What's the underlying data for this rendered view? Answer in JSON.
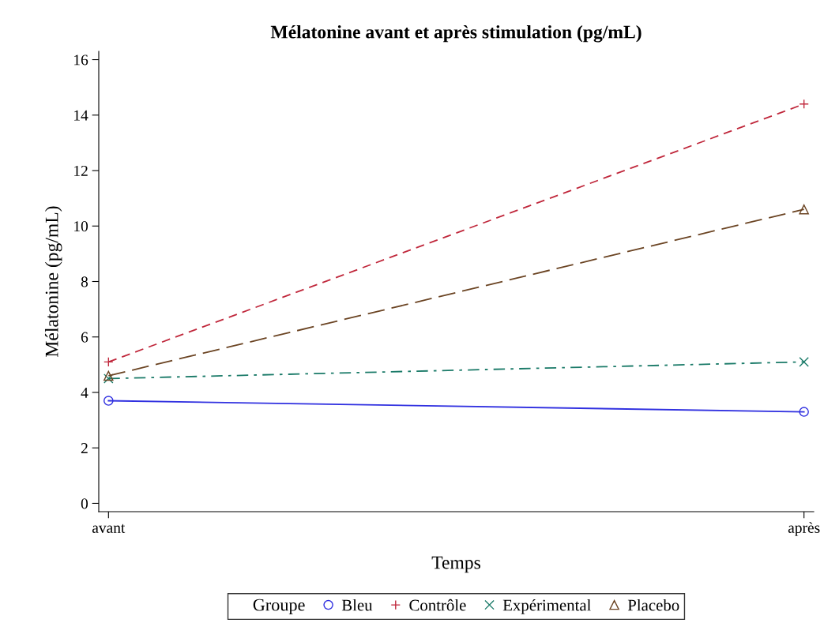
{
  "chart_data": {
    "type": "line",
    "title": "Mélatonine avant et après stimulation (pg/mL)",
    "xlabel": "Temps",
    "ylabel": "Mélatonine (pg/mL)",
    "legend_title": "Groupe",
    "categories": [
      "avant",
      "après"
    ],
    "series": [
      {
        "name": "Bleu",
        "color": "#3030e0",
        "values": [
          3.7,
          3.3
        ],
        "marker": "circle",
        "line_style": "solid"
      },
      {
        "name": "Contrôle",
        "color": "#c0283c",
        "values": [
          5.1,
          14.4
        ],
        "marker": "plus",
        "line_style": "dashed"
      },
      {
        "name": "Expérimental",
        "color": "#1a7a68",
        "values": [
          4.5,
          5.1
        ],
        "marker": "cross",
        "line_style": "dashdot"
      },
      {
        "name": "Placebo",
        "color": "#6b4423",
        "values": [
          4.6,
          10.6
        ],
        "marker": "triangle",
        "line_style": "longdash"
      }
    ],
    "ylim": [
      -0.3,
      16.3
    ],
    "yticks": [
      0,
      2,
      4,
      6,
      8,
      10,
      12,
      14,
      16
    ],
    "grid": false,
    "legend": "bottom"
  }
}
